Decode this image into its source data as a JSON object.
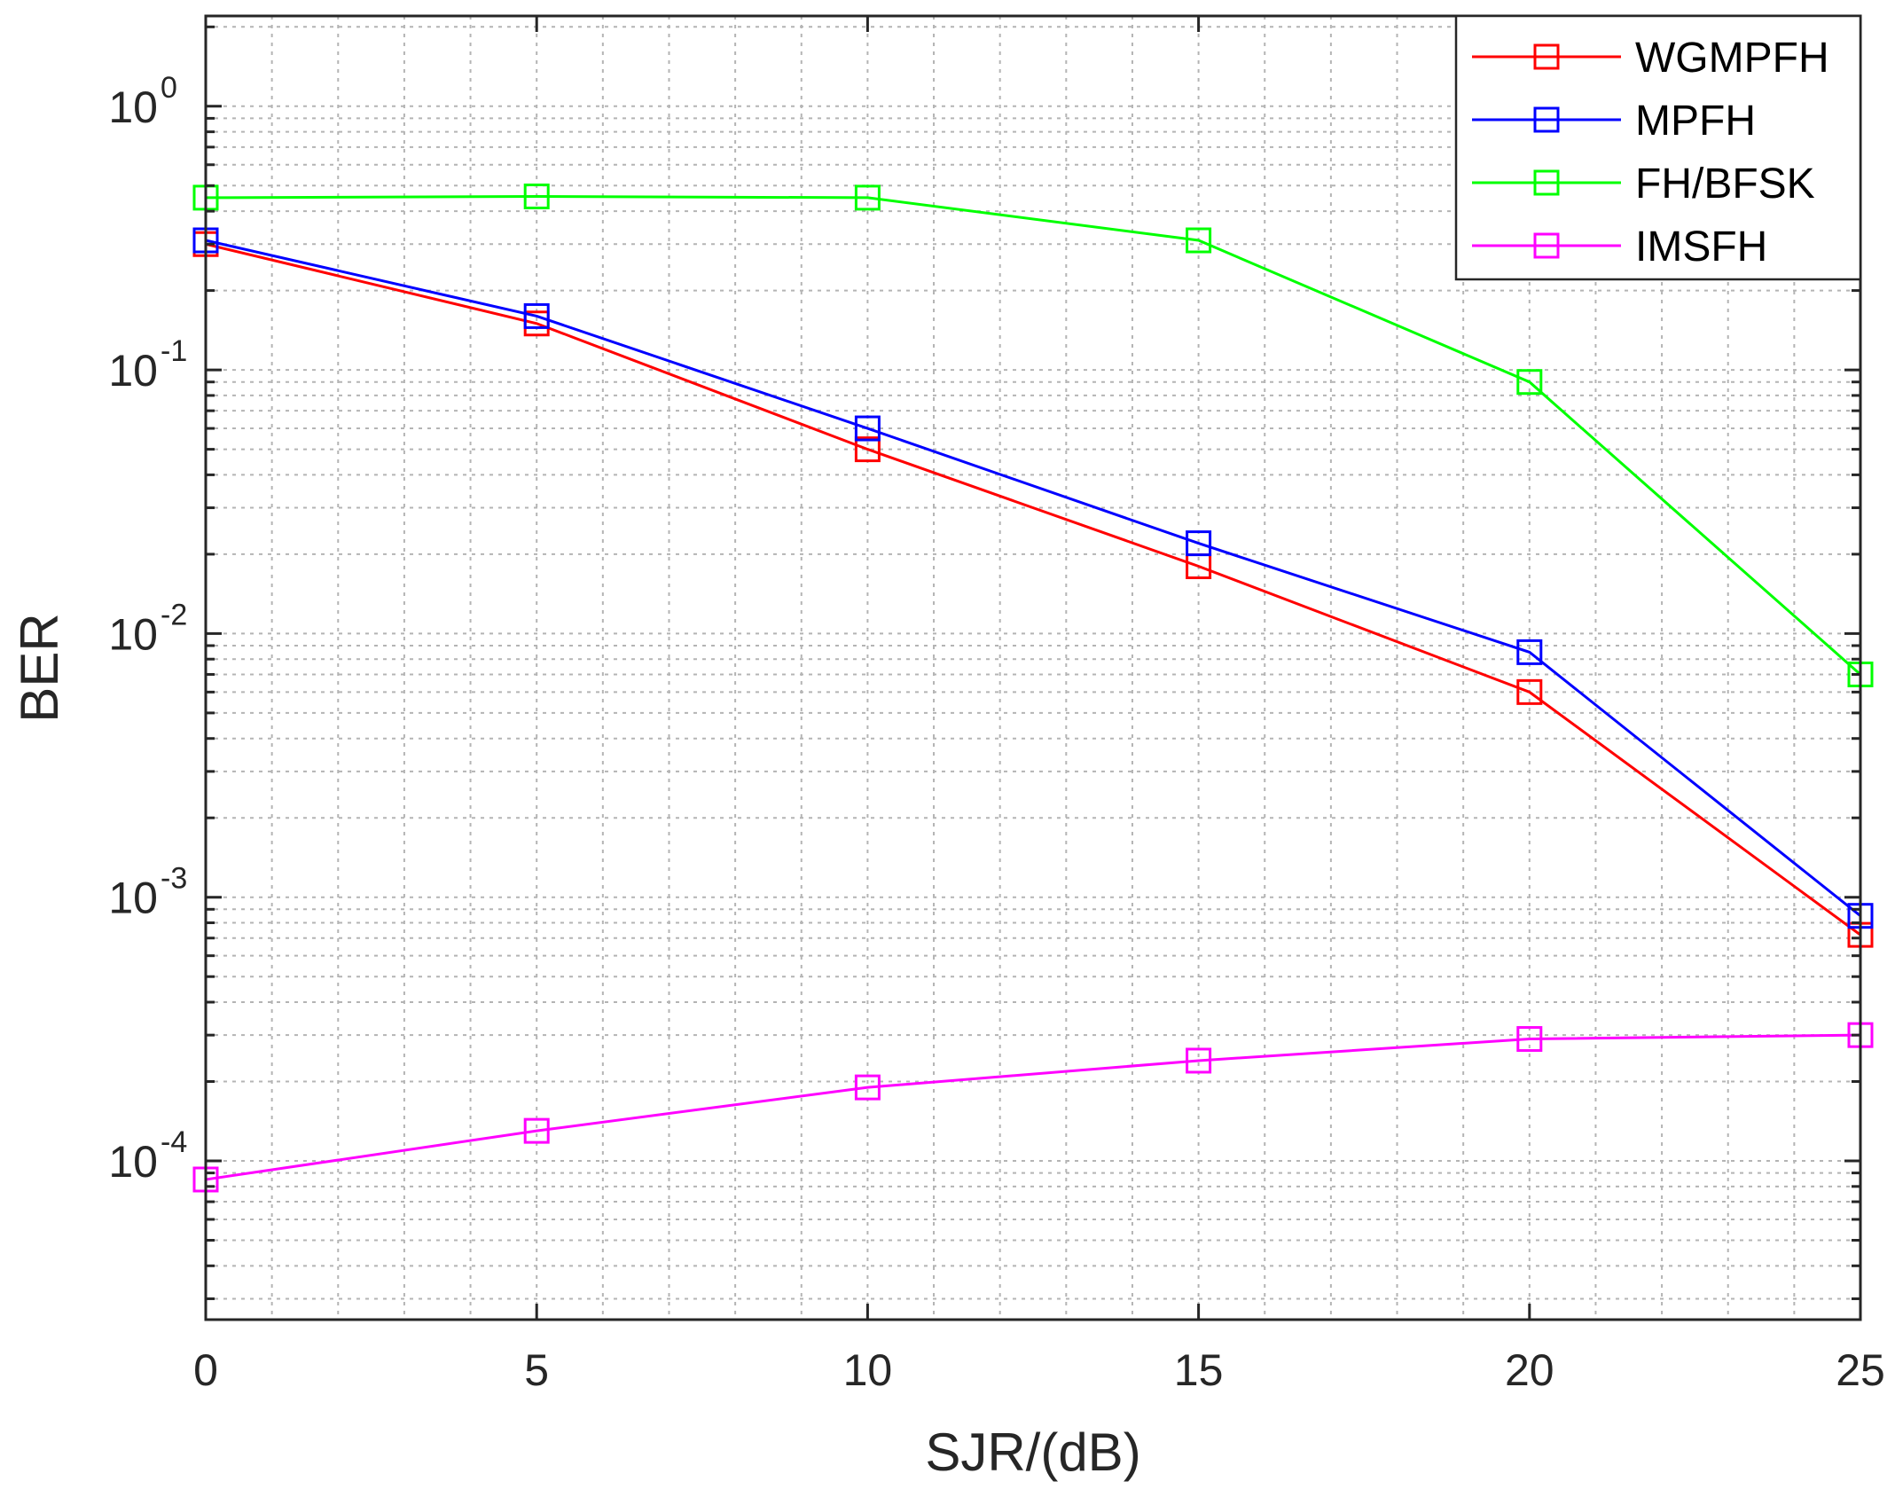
{
  "chart_data": {
    "type": "line",
    "yscale": "log",
    "title": "",
    "xlabel": "SJR/(dB)",
    "ylabel": "BER",
    "xlim": [
      0,
      25
    ],
    "ylim": [
      2.5e-05,
      2.2
    ],
    "grid": true,
    "legend_position": "top-right",
    "x": [
      0,
      5,
      10,
      15,
      20,
      25
    ],
    "xticks": [
      {
        "value": 0,
        "label": "0"
      },
      {
        "value": 5,
        "label": "5"
      },
      {
        "value": 10,
        "label": "10"
      },
      {
        "value": 15,
        "label": "15"
      },
      {
        "value": 20,
        "label": "20"
      },
      {
        "value": 25,
        "label": "25"
      }
    ],
    "yticks": [
      {
        "value": 1,
        "base": "10",
        "exp": "0"
      },
      {
        "value": 0.1,
        "base": "10",
        "exp": "-1"
      },
      {
        "value": 0.01,
        "base": "10",
        "exp": "-2"
      },
      {
        "value": 0.001,
        "base": "10",
        "exp": "-3"
      },
      {
        "value": 0.0001,
        "base": "10",
        "exp": "-4"
      }
    ],
    "series": [
      {
        "name": "WGMPFH",
        "color": "#ff0000",
        "marker": "square",
        "values": [
          0.3,
          0.15,
          0.05,
          0.018,
          0.006,
          0.00072
        ]
      },
      {
        "name": "MPFH",
        "color": "#0000ff",
        "marker": "square",
        "values": [
          0.31,
          0.16,
          0.06,
          0.022,
          0.0085,
          0.00085
        ]
      },
      {
        "name": "FH/BFSK",
        "color": "#00ff00",
        "marker": "square",
        "values": [
          0.45,
          0.455,
          0.45,
          0.31,
          0.09,
          0.007
        ]
      },
      {
        "name": "IMSFH",
        "color": "#ff00ff",
        "marker": "square",
        "values": [
          8.5e-05,
          0.00013,
          0.00019,
          0.00024,
          0.00029,
          0.0003
        ]
      }
    ]
  }
}
